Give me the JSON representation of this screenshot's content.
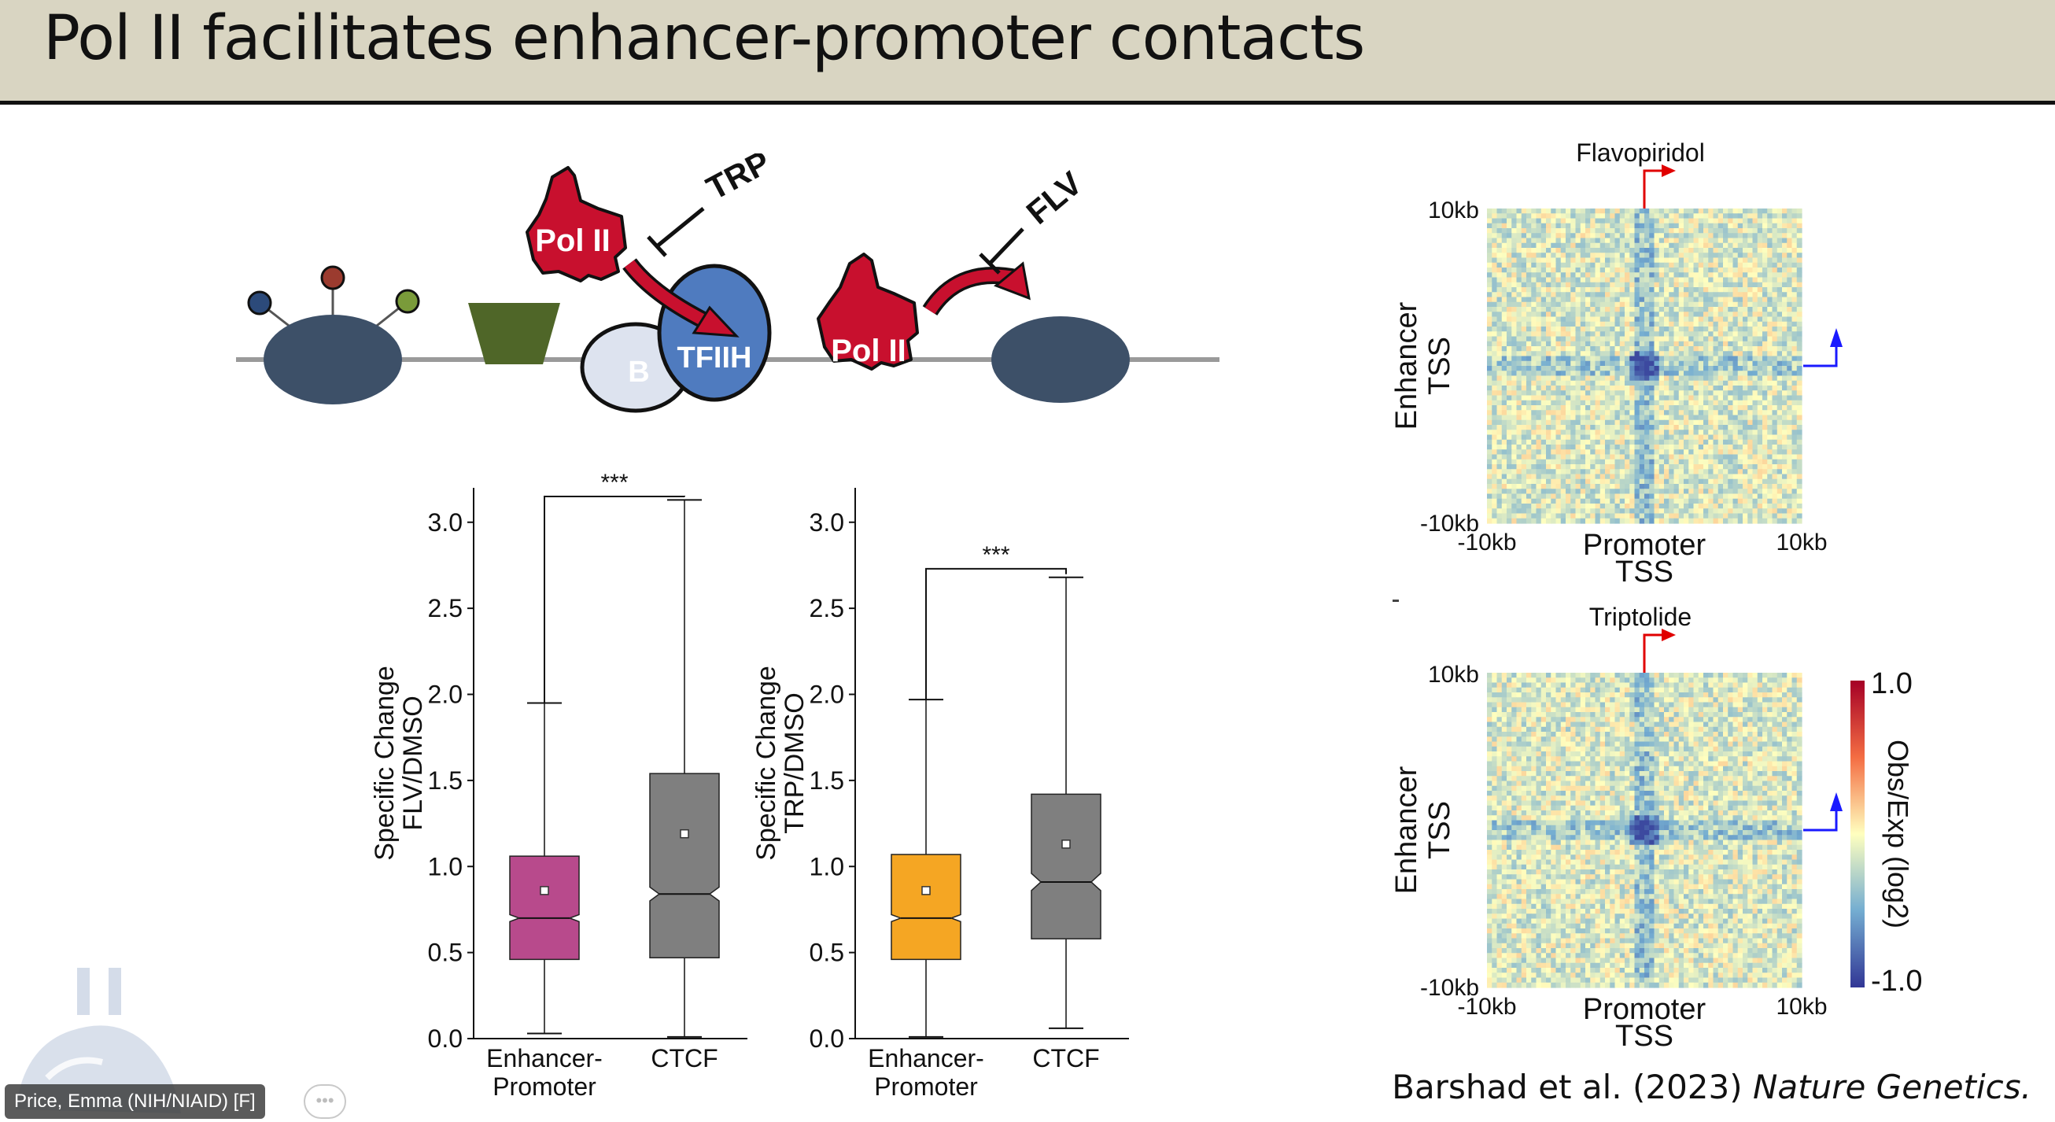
{
  "slide": {
    "title": "Pol II facilitates enhancer-promoter contacts",
    "citation_authors": "Barshad et al. (2023)",
    "citation_journal": "Nature Genetics."
  },
  "diagram": {
    "pol2_label": "Pol II",
    "pol2_label_2": "Pol II",
    "tfiih_label": "TFIIH",
    "b_label": "B",
    "trp_label": "TRP",
    "flv_label": "FLV",
    "colors": {
      "pol2_red": "#c8102e",
      "nucleosome": "#3d5068",
      "tfiih_blue": "#4f7bbf",
      "b_light": "#dde3ef",
      "trapezoid_green": "#4f6628",
      "mod_blue": "#2c4a7a",
      "mod_red": "#9b3b2f",
      "mod_green": "#7a9b3a"
    }
  },
  "chart_data": [
    {
      "type": "box",
      "ylabel": "Specific Change\nFLV/DMSO",
      "ylim": [
        0.0,
        3.2
      ],
      "yticks": [
        "0.0",
        "0.5",
        "1.0",
        "1.5",
        "2.0",
        "2.5",
        "3.0"
      ],
      "categories": [
        "Enhancer-\nPromoter",
        "CTCF"
      ],
      "boxes": [
        {
          "whisker_low": 0.03,
          "q1": 0.46,
          "median": 0.7,
          "q3": 1.06,
          "whisker_high": 1.95,
          "mean": 0.86,
          "notch_low": 0.68,
          "notch_high": 0.72,
          "color": "#b84a8c"
        },
        {
          "whisker_low": 0.01,
          "q1": 0.47,
          "median": 0.84,
          "q3": 1.54,
          "whisker_high": 3.13,
          "mean": 1.19,
          "notch_low": 0.8,
          "notch_high": 0.88,
          "color": "#7f7f7f"
        }
      ],
      "significance": "***",
      "sig_y": 3.15
    },
    {
      "type": "box",
      "ylabel": "Specific Change\nTRP/DMSO",
      "ylim": [
        0.0,
        3.2
      ],
      "yticks": [
        "0.0",
        "0.5",
        "1.0",
        "1.5",
        "2.0",
        "2.5",
        "3.0"
      ],
      "categories": [
        "Enhancer-\nPromoter",
        "CTCF"
      ],
      "boxes": [
        {
          "whisker_low": 0.01,
          "q1": 0.46,
          "median": 0.7,
          "q3": 1.07,
          "whisker_high": 1.97,
          "mean": 0.86,
          "notch_low": 0.68,
          "notch_high": 0.72,
          "color": "#f5a623"
        },
        {
          "whisker_low": 0.06,
          "q1": 0.58,
          "median": 0.91,
          "q3": 1.42,
          "whisker_high": 2.68,
          "mean": 1.13,
          "notch_low": 0.86,
          "notch_high": 0.96,
          "color": "#7f7f7f"
        }
      ],
      "significance": "***",
      "sig_y": 2.73
    },
    {
      "type": "heatmap",
      "title": "Flavopiridol",
      "xlabel": "Promoter\nTSS",
      "ylabel": "Enhancer\nTSS",
      "x_ticks": [
        "-10kb",
        "10kb"
      ],
      "y_ticks": [
        "10kb",
        "-10kb"
      ]
    },
    {
      "type": "heatmap",
      "title": "Triptolide",
      "xlabel": "Promoter\nTSS",
      "ylabel": "Enhancer\nTSS",
      "x_ticks": [
        "-10kb",
        "10kb"
      ],
      "y_ticks": [
        "10kb",
        "-10kb"
      ],
      "colorbar": {
        "label": "Obs/Exp (log2)",
        "max": "1.0",
        "min": "-1.0",
        "colormap": "RdYlBu_r"
      }
    }
  ],
  "presenter": {
    "name": "Price, Emma (NIH/NIAID) [F]",
    "more_icon": "•••"
  }
}
